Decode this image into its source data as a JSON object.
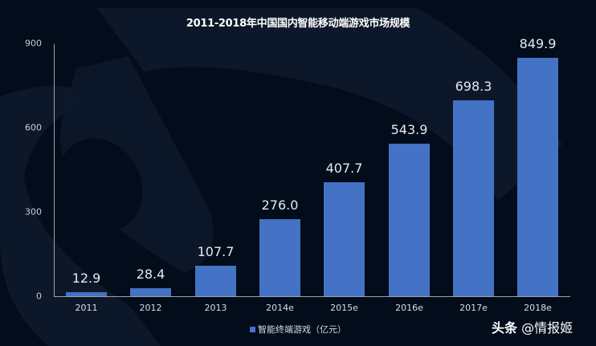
{
  "chart_data": {
    "type": "bar",
    "title": "2011-2018年中国国内智能移动端游戏市场规模",
    "categories": [
      "2011",
      "2012",
      "2013",
      "2014e",
      "2015e",
      "2016e",
      "2017e",
      "2018e"
    ],
    "series": [
      {
        "name": "智能终端游戏（亿元）",
        "values": [
          12.9,
          28.4,
          107.7,
          276.0,
          407.7,
          543.9,
          698.3,
          849.9
        ]
      }
    ],
    "value_labels": [
      "12.9",
      "28.4",
      "107.7",
      "276.0",
      "407.7",
      "543.9",
      "698.3",
      "849.9"
    ],
    "xlabel": "",
    "ylabel": "",
    "ylim": [
      0,
      900
    ],
    "yticks": [
      "0",
      "300",
      "600",
      "900"
    ],
    "grid": false,
    "legend_position": "bottom",
    "bar_color": "#4472c4"
  },
  "legend": {
    "label": "智能终端游戏（亿元）"
  },
  "watermark": {
    "platform": "头条",
    "account": "@情报姬"
  },
  "colors": {
    "background": "#020c1b",
    "bar": "#4472c4",
    "text": "#ffffff"
  }
}
